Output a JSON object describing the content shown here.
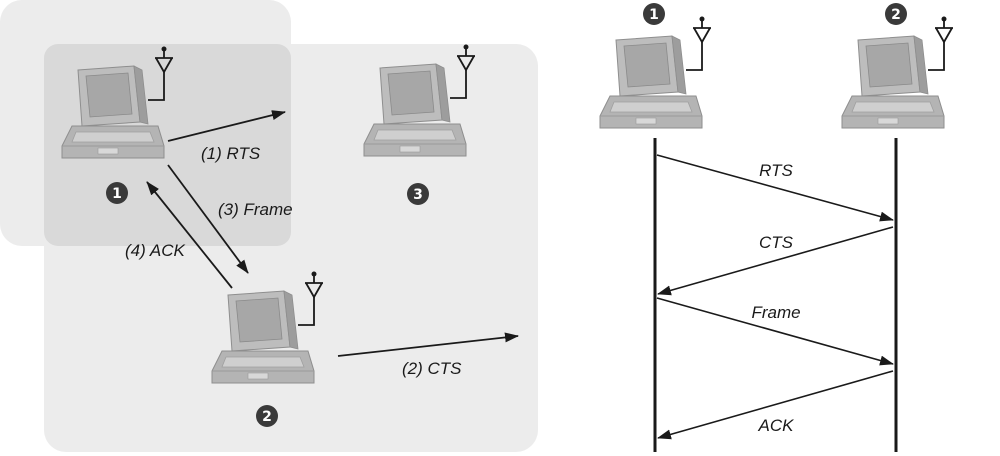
{
  "left_scenario": {
    "stations": [
      {
        "id": "1",
        "badge": "1"
      },
      {
        "id": "2",
        "badge": "2"
      },
      {
        "id": "3",
        "badge": "3"
      }
    ],
    "messages": [
      {
        "name": "rts",
        "label": "(1)  RTS"
      },
      {
        "name": "cts",
        "label": "(2)  CTS"
      },
      {
        "name": "frame",
        "label": "(3)  Frame"
      },
      {
        "name": "ack",
        "label": "(4)  ACK"
      }
    ]
  },
  "sequence_diagram": {
    "stations": [
      {
        "id": "1",
        "badge": "1"
      },
      {
        "id": "2",
        "badge": "2"
      }
    ],
    "messages": [
      {
        "name": "rts",
        "label": "RTS",
        "from": "1",
        "to": "2"
      },
      {
        "name": "cts",
        "label": "CTS",
        "from": "2",
        "to": "1"
      },
      {
        "name": "frame",
        "label": "Frame",
        "from": "1",
        "to": "2"
      },
      {
        "name": "ack",
        "label": "ACK",
        "from": "2",
        "to": "1"
      }
    ]
  },
  "colors": {
    "range_region": "#ececec",
    "range_overlap": "#d9d9d9",
    "laptop_body": "#b8b8b8",
    "laptop_edge": "#8e8e8e",
    "laptop_screen": "#a9a9a9",
    "badge": "#3a3a3a",
    "line": "#1a1a1a"
  }
}
